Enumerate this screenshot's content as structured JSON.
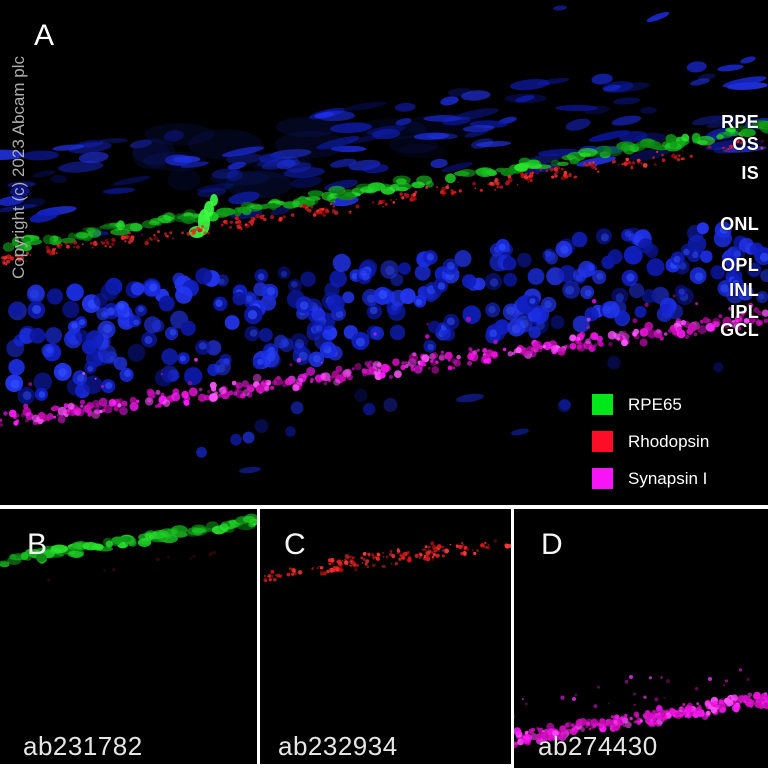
{
  "copyright": "Copyright (c) 2023 Abcam plc",
  "panel_a": {
    "label": "A"
  },
  "panel_b": {
    "label": "B",
    "antibody_code": "ab231782"
  },
  "panel_c": {
    "label": "C",
    "antibody_code": "ab232934"
  },
  "panel_d": {
    "label": "D",
    "antibody_code": "ab274430"
  },
  "layer_labels": [
    "RPE",
    "OS",
    "IS",
    "ONL",
    "OPL",
    "INL",
    "IPL",
    "GCL"
  ],
  "legend": [
    {
      "label": "RPE65",
      "color": "#00e81a"
    },
    {
      "label": "Rhodopsin",
      "color": "#fd0d28"
    },
    {
      "label": "Synapsin I",
      "color": "#f714f7"
    }
  ],
  "colors": {
    "background": "#000000",
    "dapi_nuclei_blue": "#1b2de0",
    "separator_white": "#ffffff",
    "label_text": "#ffffff",
    "copyright_text": "#adadad",
    "antibody_code_text": "#e6e6e6"
  }
}
